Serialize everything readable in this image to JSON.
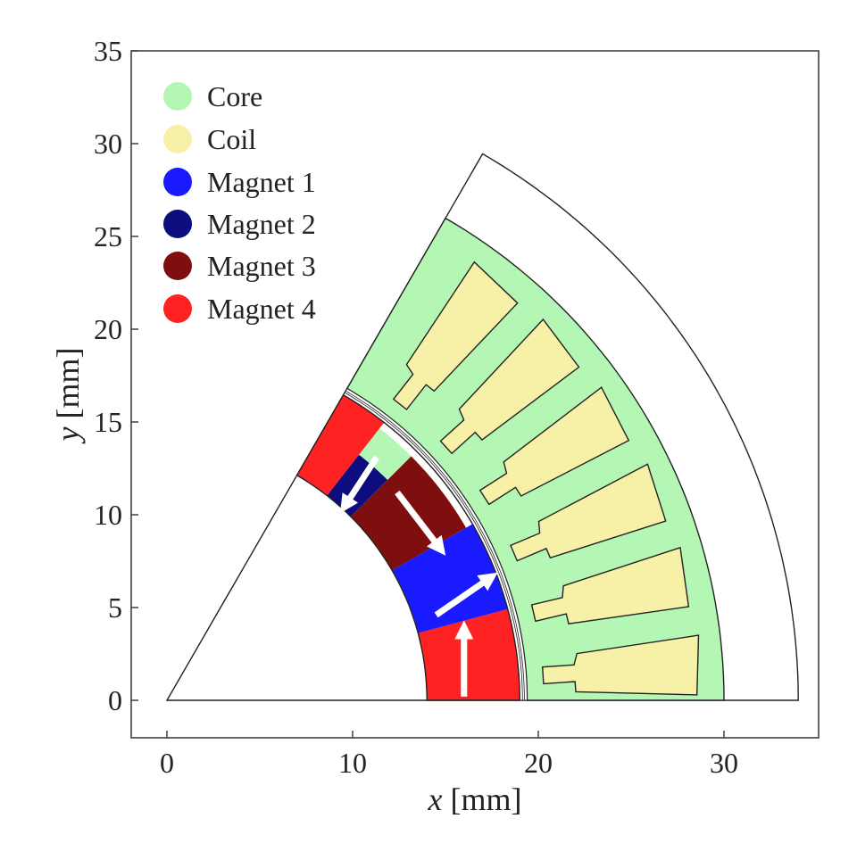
{
  "axes": {
    "xlabel_var": "x",
    "xlabel_unit": " [mm]",
    "ylabel_var": "y",
    "ylabel_unit": " [mm]",
    "xlim": [
      -2,
      35
    ],
    "ylim": [
      -2,
      35
    ],
    "xticks": [
      "0",
      "10",
      "20",
      "30"
    ],
    "yticks": [
      "0",
      "5",
      "10",
      "15",
      "20",
      "25",
      "30",
      "35"
    ]
  },
  "legend": {
    "placement": "top-left",
    "items": [
      {
        "label": "Core",
        "color": "#b4f7b4"
      },
      {
        "label": "Coil",
        "color": "#f7f1a8"
      },
      {
        "label": "Magnet 1",
        "color": "#1a1aff"
      },
      {
        "label": "Magnet 2",
        "color": "#0d0d80"
      },
      {
        "label": "Magnet 3",
        "color": "#7f0e0e"
      },
      {
        "label": "Magnet 4",
        "color": "#ff2222"
      }
    ]
  },
  "colors": {
    "core": "#b4f7b4",
    "coil": "#f7f1a8",
    "magnet1": "#1a1aff",
    "magnet2": "#0d0d80",
    "magnet3": "#7f0e0e",
    "magnet4": "#ff2222",
    "outline": "#222222",
    "arrow": "#ffffff"
  }
}
